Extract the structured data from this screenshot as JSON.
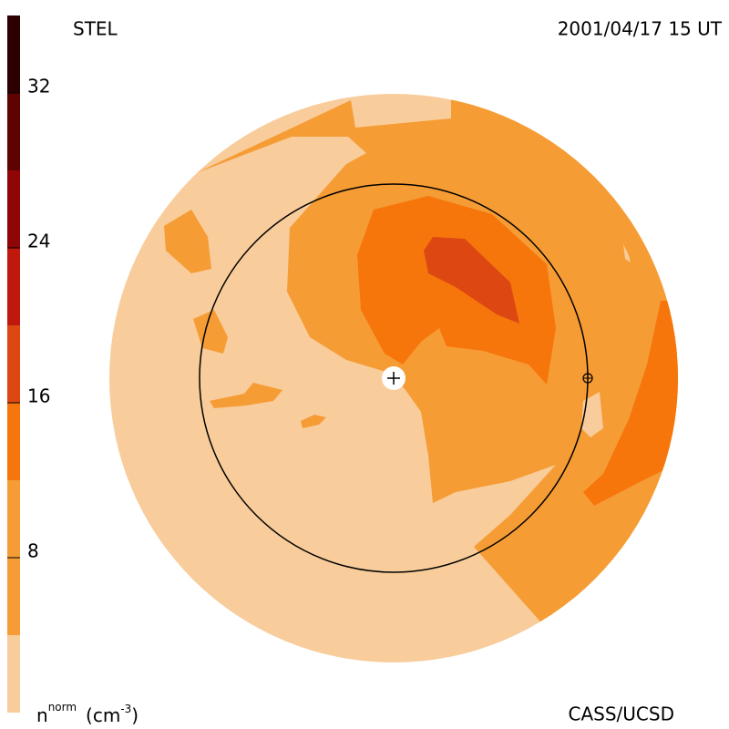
{
  "chart_data": {
    "type": "contour",
    "title": "STEL",
    "subtitle": "2001/04/17 15 UT",
    "credit": "CASS/UCSD",
    "colorbar_label": [
      "n",
      "norm",
      "(cm",
      "-3",
      ")"
    ],
    "levels": [
      0,
      4,
      12,
      16,
      20,
      24,
      28,
      32,
      36
    ],
    "colors": [
      "#f8cc9b",
      "#f69c34",
      "#f6760c",
      "#dd4812",
      "#c0180c",
      "#900606",
      "#5e0202",
      "#2c0000"
    ],
    "clim": [
      0,
      36
    ],
    "cticks": [
      8,
      16,
      24,
      32
    ]
  }
}
